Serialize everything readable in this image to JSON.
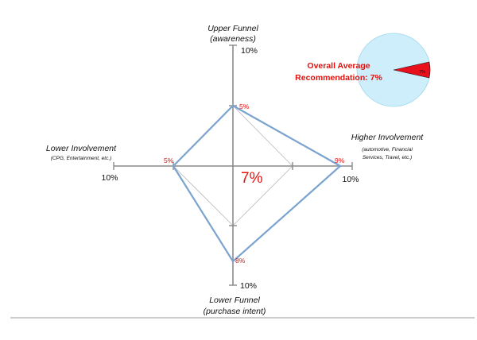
{
  "chart_data": {
    "type": "radar",
    "axes": [
      {
        "key": "upper",
        "title": "Upper Funnel",
        "subtitle": "(awareness)",
        "max_label": "10%",
        "max": 10,
        "value": 5,
        "value_label": "5%"
      },
      {
        "key": "higher",
        "title": "Higher Involvement",
        "subtitle_lines": [
          "(automotive, Financial",
          "Services, Travel, etc.)"
        ],
        "max_label": "10%",
        "max": 10,
        "value": 9,
        "value_label": "9%"
      },
      {
        "key": "lower_funnel",
        "title": "Lower Funnel",
        "subtitle": "(purchase intent)",
        "max_label": "10%",
        "max": 10,
        "value": 8,
        "value_label": "8%"
      },
      {
        "key": "lower_involvement",
        "title": "Lower Involvement",
        "subtitle": "(CPG, Entertainment, etc.)",
        "max_label": "10%",
        "max": 10,
        "value": 5,
        "value_label": "5%"
      }
    ],
    "center_value": 7,
    "center_label": "7%",
    "overall": {
      "label_lines": [
        "Overall Average",
        "Recommendation: 7%"
      ],
      "value": 7,
      "slice_label": "7%",
      "colors": {
        "pie": "#cdeefa",
        "slice": "#e8101a"
      }
    },
    "colors": {
      "polygon": "#7aa3cf",
      "axis": "#8a8a8a",
      "grid": "#b8b8b8",
      "accent": "#e0120f"
    }
  }
}
